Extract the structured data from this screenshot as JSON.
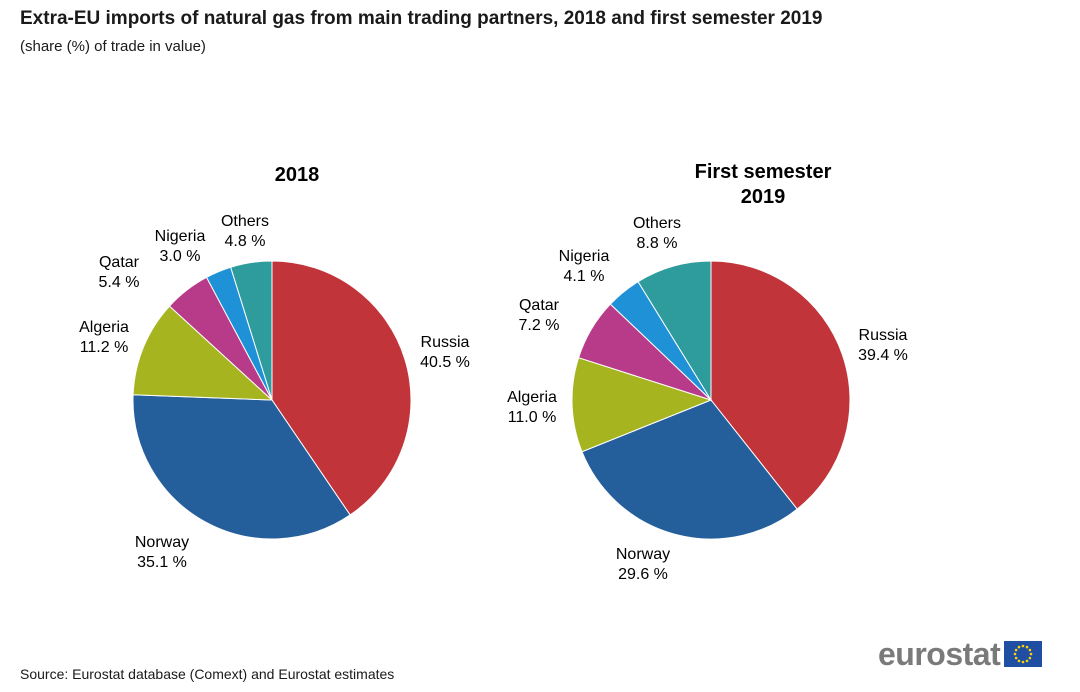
{
  "title": "Extra-EU imports of natural gas from main trading partners, 2018 and first semester 2019",
  "subtitle": "(share (%) of trade in value)",
  "source": "Source: Eurostat database (Comext) and Eurostat estimates",
  "logo": "eurostat",
  "colors": {
    "Russia": "#c1343a",
    "Norway": "#245f9c",
    "Algeria": "#a5b41f",
    "Qatar": "#b83b8a",
    "Nigeria": "#1f91d6",
    "Others": "#2e9b9c"
  },
  "chart_data": [
    {
      "type": "pie",
      "title": [
        "2018"
      ],
      "slices": [
        {
          "label": "Russia",
          "value": 40.5,
          "display": "40.5 %"
        },
        {
          "label": "Norway",
          "value": 35.1,
          "display": "35.1 %"
        },
        {
          "label": "Algeria",
          "value": 11.2,
          "display": "11.2 %"
        },
        {
          "label": "Qatar",
          "value": 5.4,
          "display": "5.4 %"
        },
        {
          "label": "Nigeria",
          "value": 3.0,
          "display": "3.0 %"
        },
        {
          "label": "Others",
          "value": 4.8,
          "display": "4.8 %"
        }
      ]
    },
    {
      "type": "pie",
      "title": [
        "First semester",
        "2019"
      ],
      "slices": [
        {
          "label": "Russia",
          "value": 39.4,
          "display": "39.4 %"
        },
        {
          "label": "Norway",
          "value": 29.6,
          "display": "29.6 %"
        },
        {
          "label": "Algeria",
          "value": 11.0,
          "display": "11.0 %"
        },
        {
          "label": "Qatar",
          "value": 7.2,
          "display": "7.2 %"
        },
        {
          "label": "Nigeria",
          "value": 4.1,
          "display": "4.1 %"
        },
        {
          "label": "Others",
          "value": 8.8,
          "display": "8.8 %"
        }
      ]
    }
  ]
}
